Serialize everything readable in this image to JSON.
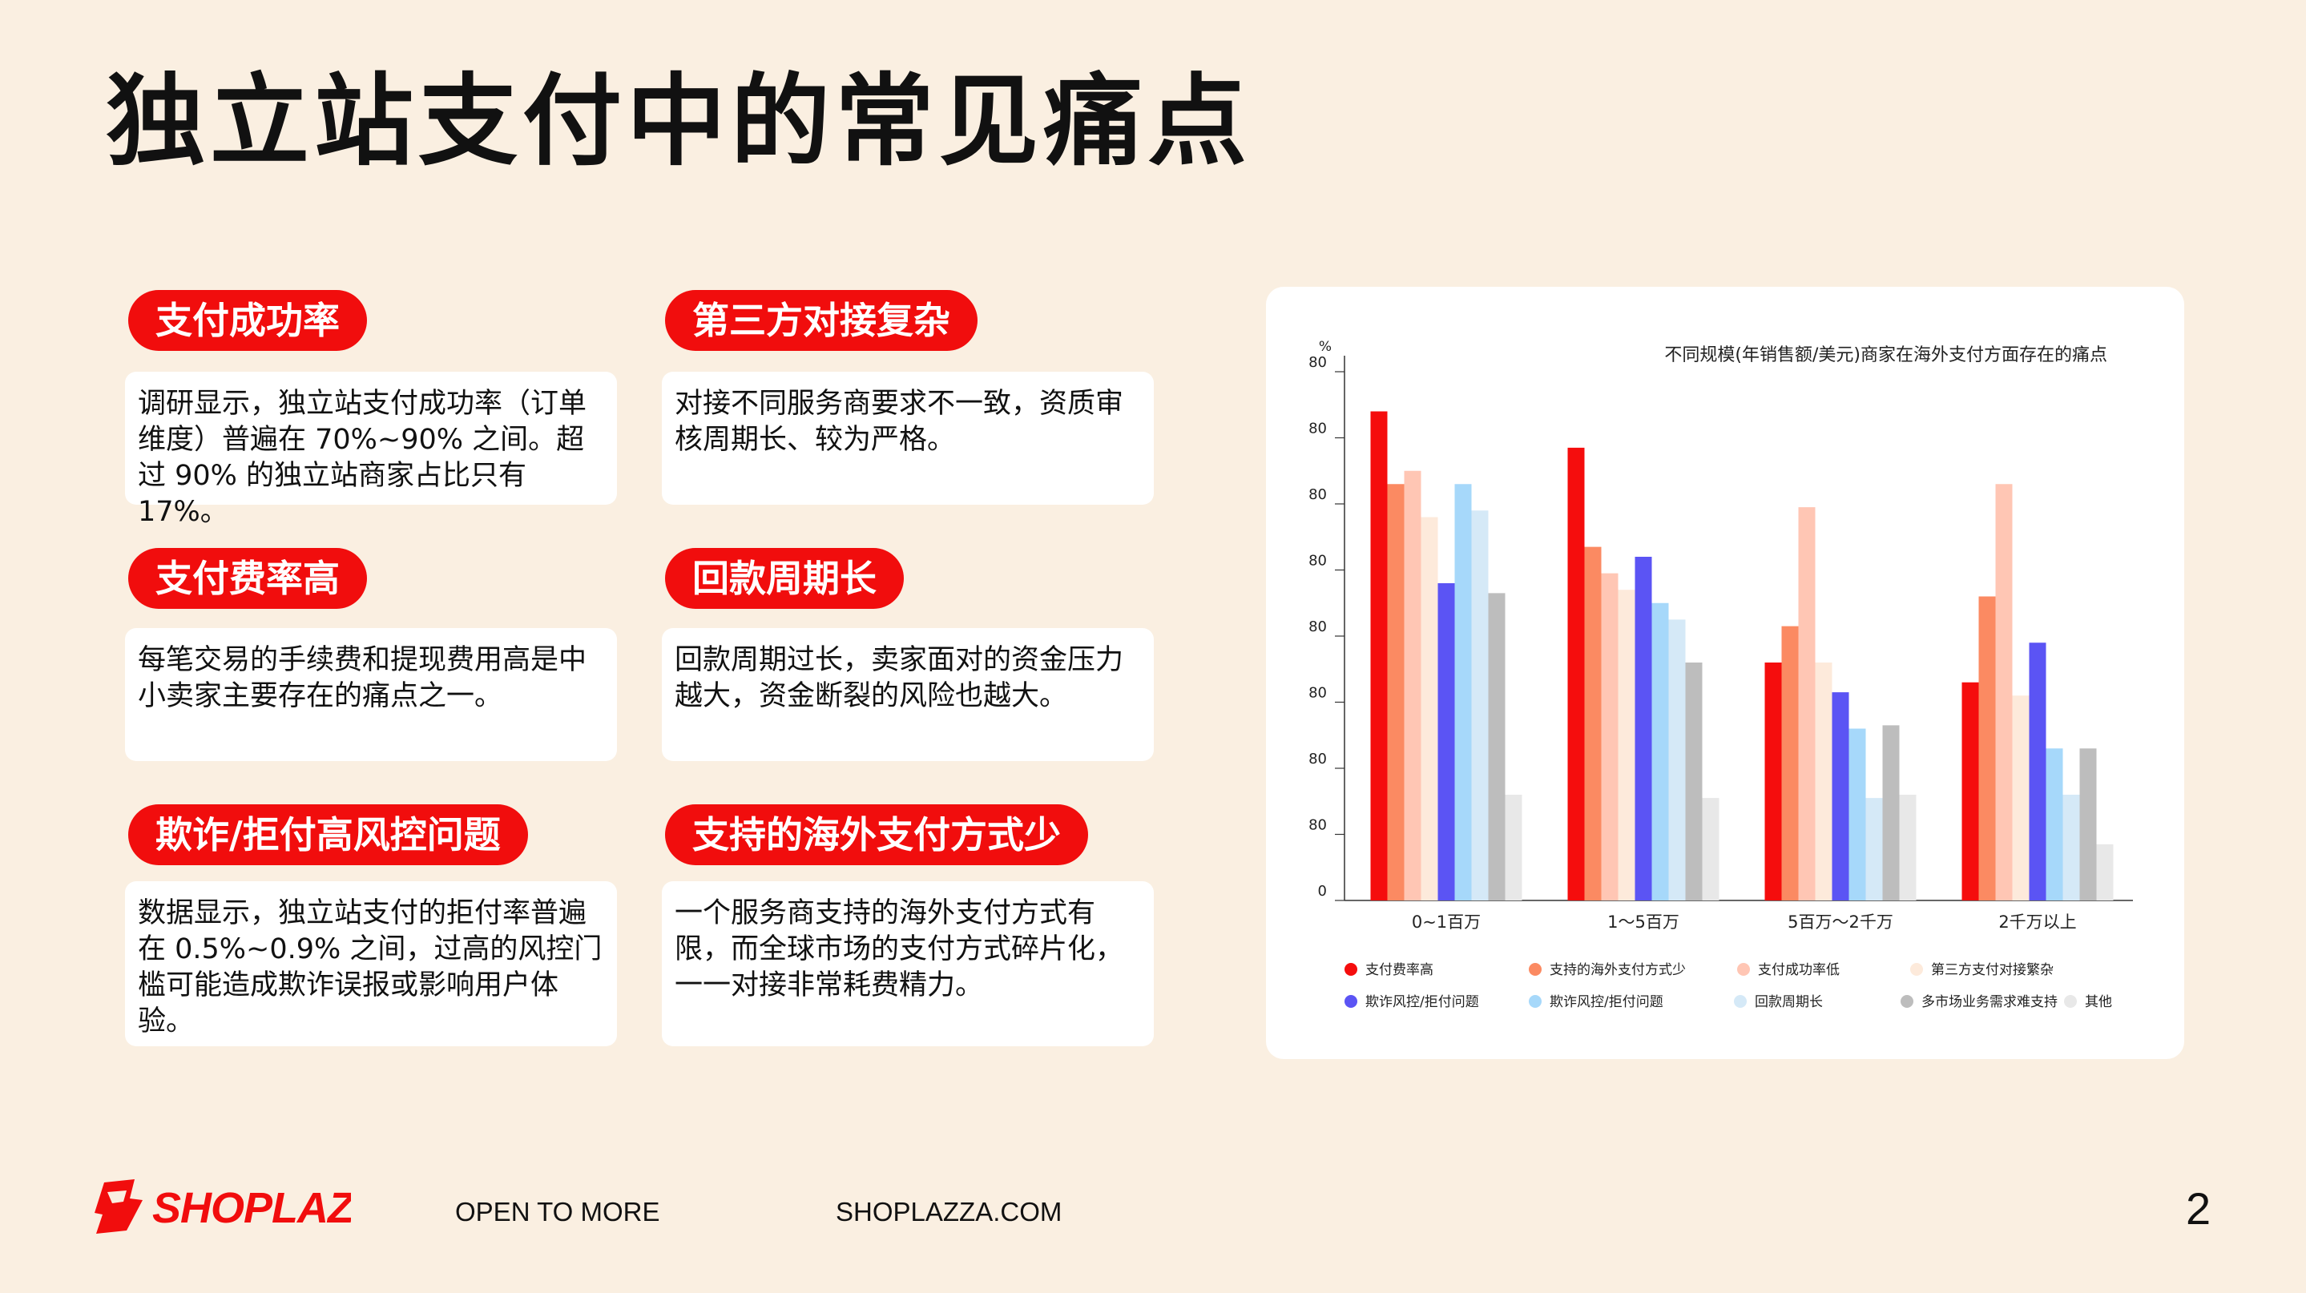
{
  "slide": {
    "title": "独立站支付中的常见痛点",
    "page_number": "2"
  },
  "cards": [
    {
      "tag": "支付成功率",
      "body": "调研显示，独立站支付成功率（订单维度）普遍在 70%~90% 之间。超过 90% 的独立站商家占比只有 17%。"
    },
    {
      "tag": "第三方对接复杂",
      "body": "对接不同服务商要求不一致，资质审核周期长、较为严格。"
    },
    {
      "tag": "支付费率高",
      "body": "每笔交易的手续费和提现费用高是中小卖家主要存在的痛点之一。"
    },
    {
      "tag": "回款周期长",
      "body": "回款周期过长，卖家面对的资金压力越大，资金断裂的风险也越大。"
    },
    {
      "tag": "欺诈/拒付高风控问题",
      "body": "数据显示，独立站支付的拒付率普遍在 0.5%~0.9% 之间，过高的风控门槛可能造成欺诈误报或影响用户体验。"
    },
    {
      "tag": "支持的海外支付方式少",
      "body": "一个服务商支持的海外支付方式有限，而全球市场的支付方式碎片化，一一对接非常耗费精力。"
    }
  ],
  "footer": {
    "brand": "SHOPLAZZA",
    "slogan": "OPEN TO MORE",
    "website": "SHOPLAZZA.COM"
  },
  "colors": {
    "accent": "#f10d0d",
    "background": "#faefe1"
  },
  "chart_data": {
    "type": "bar",
    "title": "不同规模(年销售额/美元)商家在海外支付方面存在的痛点",
    "ylabel": "%",
    "ylim": [
      0,
      80
    ],
    "ytick_labels": [
      "0",
      "80",
      "80",
      "80",
      "80",
      "80",
      "80",
      "80",
      "80"
    ],
    "categories": [
      "0~1百万",
      "1～5百万",
      "5百万～2千万",
      "2千万以上"
    ],
    "grid": false,
    "legend_position": "bottom",
    "series": [
      {
        "name": "支付费率高",
        "color": "#f50d0d",
        "values": [
          74,
          68.5,
          36,
          33
        ]
      },
      {
        "name": "支持的海外支付方式少",
        "color": "#fb8a62",
        "values": [
          63,
          53.5,
          41.5,
          46
        ]
      },
      {
        "name": "支付成功率低",
        "color": "#ffc6b4",
        "values": [
          65,
          49.5,
          59.5,
          63
        ]
      },
      {
        "name": "第三方支付对接繁杂",
        "color": "#fdeadb",
        "values": [
          58,
          47,
          36,
          31
        ]
      },
      {
        "name": "欺诈风控/拒付问题",
        "color": "#5b54f4",
        "values": [
          48,
          52,
          31.5,
          39
        ]
      },
      {
        "name": "欺诈风控/拒付问题",
        "color": "#a6d8fa",
        "values": [
          63,
          45,
          26,
          23
        ]
      },
      {
        "name": "回款周期长",
        "color": "#d5e9f7",
        "values": [
          59,
          42.5,
          15.5,
          16
        ]
      },
      {
        "name": "多市场业务需求难支持",
        "color": "#bdbdbd",
        "values": [
          46.5,
          36,
          26.5,
          23
        ]
      },
      {
        "name": "其他",
        "color": "#e8e8e8",
        "values": [
          16,
          15.5,
          16,
          8.5
        ]
      }
    ]
  }
}
